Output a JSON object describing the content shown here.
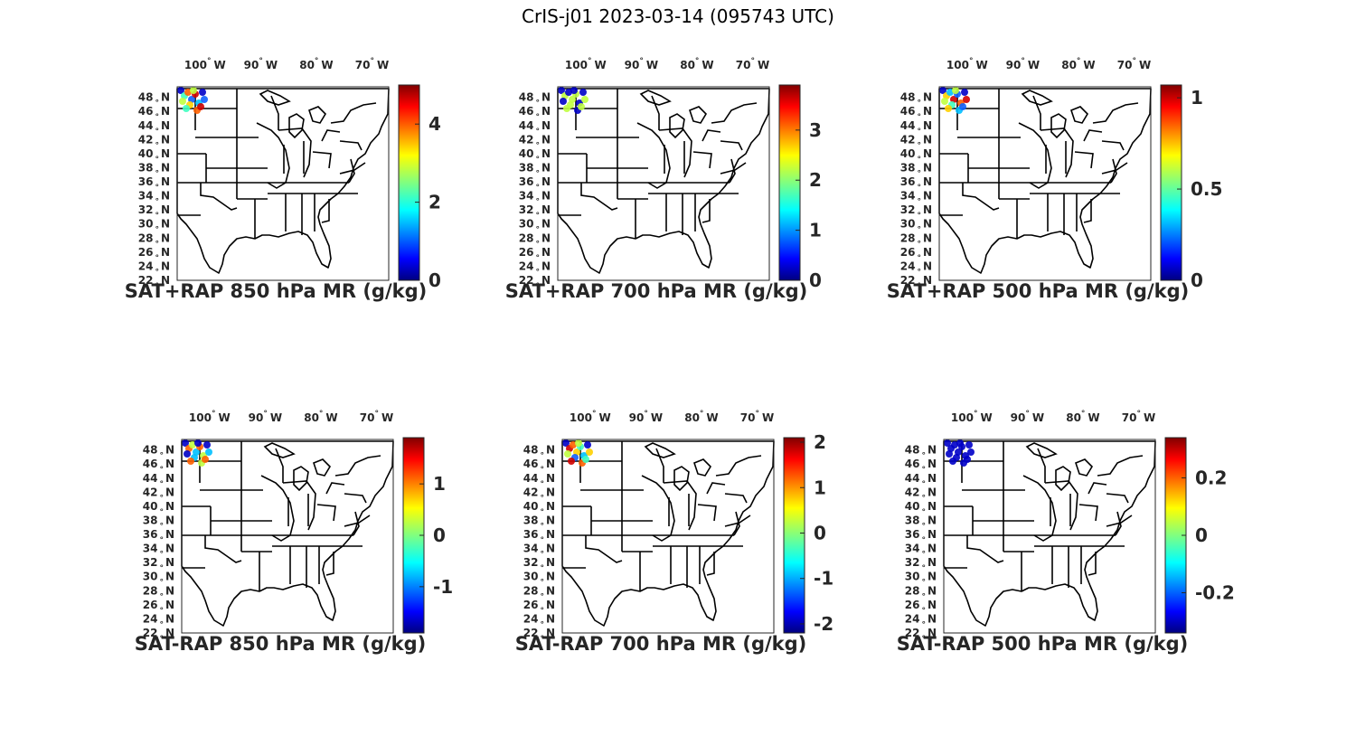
{
  "figure": {
    "title": "CrIS-j01 2023-03-14 (095743 UTC)"
  },
  "map": {
    "lon_ticks": [
      "100",
      "90",
      "80",
      "70"
    ],
    "lon_suffix": "W",
    "lat_ticks": [
      "48",
      "46",
      "44",
      "42",
      "40",
      "38",
      "36",
      "34",
      "32",
      "30",
      "28",
      "26",
      "24",
      "22"
    ],
    "lat_suffix": "N",
    "lon_range": [
      -105,
      -67
    ],
    "lat_range": [
      22,
      49.5
    ],
    "colormap": "jet"
  },
  "panels": [
    {
      "id": "p1",
      "title": "SAT+RAP 850 hPa MR (g/kg)",
      "cbar_range": [
        0,
        5.0
      ],
      "cbar_ticks": [
        "0",
        "2",
        "4"
      ],
      "cbar_tick_values": [
        0,
        2,
        4
      ]
    },
    {
      "id": "p2",
      "title": "SAT+RAP 700 hPa MR (g/kg)",
      "cbar_range": [
        0,
        3.9
      ],
      "cbar_ticks": [
        "0",
        "1",
        "2",
        "3"
      ],
      "cbar_tick_values": [
        0,
        1,
        2,
        3
      ]
    },
    {
      "id": "p3",
      "title": "SAT+RAP 500 hPa MR (g/kg)",
      "cbar_range": [
        0,
        1.07
      ],
      "cbar_ticks": [
        "0",
        "0.5",
        "1"
      ],
      "cbar_tick_values": [
        0,
        0.5,
        1
      ]
    },
    {
      "id": "p4",
      "title": "SAT-RAP 850 hPa MR (g/kg)",
      "cbar_range": [
        -1.9,
        1.9
      ],
      "cbar_ticks": [
        "-1",
        "0",
        "1"
      ],
      "cbar_tick_values": [
        -1,
        0,
        1
      ]
    },
    {
      "id": "p5",
      "title": "SAT-RAP 700 hPa MR (g/kg)",
      "cbar_range": [
        -2.2,
        2.1
      ],
      "cbar_ticks": [
        "-2",
        "-1",
        "0",
        "1",
        "2"
      ],
      "cbar_tick_values": [
        -2,
        -1,
        0,
        1,
        2
      ]
    },
    {
      "id": "p6",
      "title": "SAT-RAP 500 hPa MR (g/kg)",
      "cbar_range": [
        -0.34,
        0.34
      ],
      "cbar_ticks": [
        "-0.2",
        "0",
        "0.2"
      ],
      "cbar_tick_values": [
        -0.2,
        0,
        0.2
      ]
    }
  ]
}
